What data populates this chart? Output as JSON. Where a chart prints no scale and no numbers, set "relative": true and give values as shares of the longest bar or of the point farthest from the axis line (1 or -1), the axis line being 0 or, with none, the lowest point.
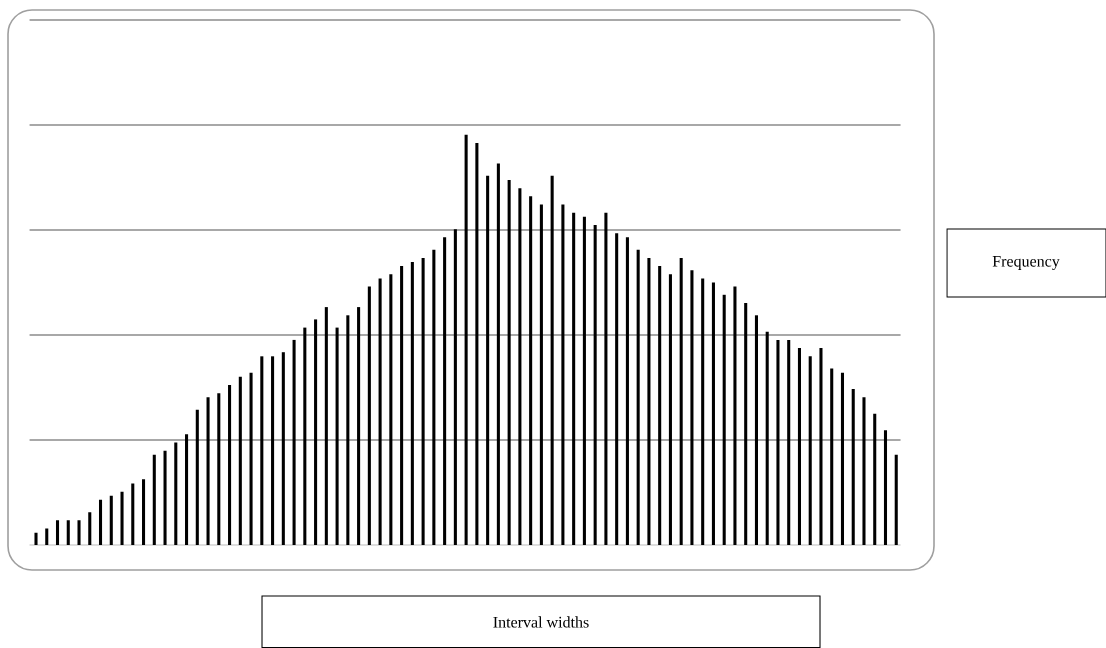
{
  "chart_data": {
    "type": "bar",
    "relative": true,
    "xlabel": "Interval widths",
    "annotations": [
      "Frequency"
    ],
    "color": "#000000",
    "grid": "y",
    "categories": [
      null,
      null,
      null,
      null,
      null,
      null,
      null,
      null,
      null,
      null,
      null,
      null,
      null,
      null,
      null,
      null,
      null,
      null,
      null,
      null,
      null,
      null,
      null,
      null,
      null,
      null,
      null,
      null,
      null,
      null,
      null,
      null,
      null,
      null,
      null,
      null,
      null,
      null,
      null,
      null,
      null,
      null,
      null,
      null,
      null,
      null,
      null,
      null,
      null,
      null,
      null,
      null,
      null,
      null,
      null,
      null,
      null,
      null,
      null,
      null,
      null,
      null,
      null,
      null,
      null,
      null,
      null,
      null,
      null,
      null,
      null,
      null,
      null,
      null,
      null,
      null,
      null,
      null,
      null,
      null,
      null
    ],
    "values": [
      0.03,
      0.04,
      0.06,
      0.06,
      0.06,
      0.08,
      0.11,
      0.12,
      0.13,
      0.15,
      0.16,
      0.22,
      0.23,
      0.25,
      0.27,
      0.33,
      0.36,
      0.37,
      0.39,
      0.41,
      0.42,
      0.46,
      0.46,
      0.47,
      0.5,
      0.53,
      0.55,
      0.58,
      0.53,
      0.56,
      0.58,
      0.63,
      0.65,
      0.66,
      0.68,
      0.69,
      0.7,
      0.72,
      0.75,
      0.77,
      1,
      0.98,
      0.9,
      0.93,
      0.89,
      0.87,
      0.85,
      0.83,
      0.9,
      0.83,
      0.81,
      0.8,
      0.78,
      0.81,
      0.76,
      0.75,
      0.72,
      0.7,
      0.68,
      0.66,
      0.7,
      0.67,
      0.65,
      0.64,
      0.61,
      0.63,
      0.59,
      0.56,
      0.52,
      0.5,
      0.5,
      0.48,
      0.46,
      0.48,
      0.43,
      0.42,
      0.38,
      0.36,
      0.32,
      0.28,
      0.22
    ]
  }
}
